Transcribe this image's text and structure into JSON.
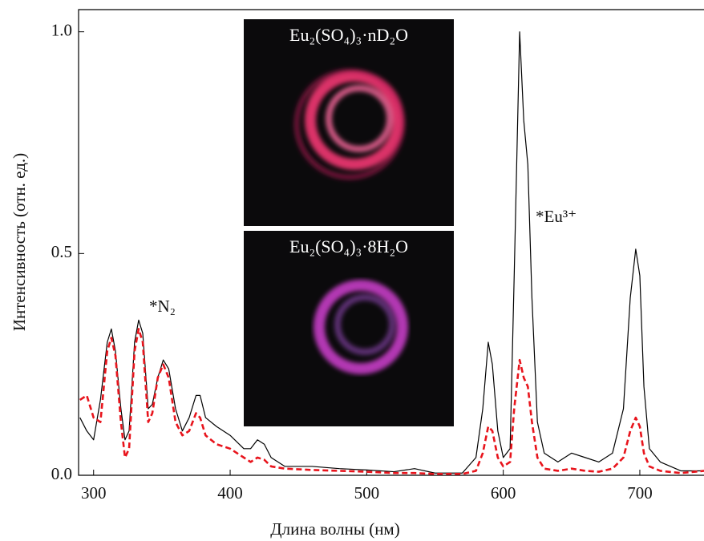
{
  "chart_data": {
    "type": "line",
    "x_label": "Длина волны (нм)",
    "y_label": "Интенсивность (отн. ед.)",
    "xlim": [
      289,
      747
    ],
    "ylim": [
      0,
      1.05
    ],
    "xticks": [
      300,
      400,
      500,
      600,
      700
    ],
    "yticks": [
      {
        "value": 0,
        "label": "0.0"
      },
      0.5,
      {
        "value": 1,
        "label": "1.0"
      }
    ],
    "annotations": [
      "*N₂",
      "*Eu³⁺"
    ],
    "insets": [
      {
        "label": "Eu₂(SO₄)₃·nD₂O"
      },
      {
        "label": "Eu₂(SO₄)₃·8H₂O"
      }
    ],
    "x": [
      290,
      295,
      300,
      305,
      310,
      313,
      316,
      320,
      323,
      326,
      330,
      333,
      336,
      340,
      343,
      347,
      351,
      355,
      360,
      365,
      370,
      375,
      378,
      382,
      390,
      400,
      410,
      415,
      420,
      425,
      430,
      440,
      460,
      480,
      500,
      520,
      535,
      550,
      570,
      580,
      585,
      589,
      592,
      596,
      600,
      605,
      608,
      612,
      615,
      618,
      621,
      625,
      630,
      640,
      650,
      660,
      670,
      680,
      688,
      693,
      697,
      700,
      703,
      707,
      715,
      730,
      747
    ],
    "series": [
      {
        "color": "#000000",
        "dashed": false,
        "values": [
          0.13,
          0.1,
          0.08,
          0.17,
          0.3,
          0.33,
          0.28,
          0.15,
          0.08,
          0.1,
          0.3,
          0.35,
          0.32,
          0.15,
          0.16,
          0.22,
          0.26,
          0.24,
          0.15,
          0.1,
          0.13,
          0.18,
          0.18,
          0.13,
          0.11,
          0.09,
          0.06,
          0.06,
          0.08,
          0.07,
          0.04,
          0.02,
          0.02,
          0.015,
          0.012,
          0.008,
          0.015,
          0.005,
          0.005,
          0.04,
          0.15,
          0.3,
          0.25,
          0.1,
          0.04,
          0.06,
          0.45,
          1.0,
          0.8,
          0.7,
          0.4,
          0.12,
          0.05,
          0.03,
          0.05,
          0.04,
          0.03,
          0.05,
          0.15,
          0.4,
          0.51,
          0.45,
          0.2,
          0.06,
          0.03,
          0.01,
          0.01
        ]
      },
      {
        "color": "#e8141c",
        "dashed": true,
        "values": [
          0.17,
          0.18,
          0.13,
          0.12,
          0.28,
          0.31,
          0.27,
          0.12,
          0.04,
          0.06,
          0.28,
          0.33,
          0.3,
          0.12,
          0.14,
          0.22,
          0.25,
          0.22,
          0.12,
          0.09,
          0.1,
          0.14,
          0.13,
          0.09,
          0.07,
          0.06,
          0.04,
          0.03,
          0.04,
          0.035,
          0.02,
          0.015,
          0.012,
          0.01,
          0.008,
          0.005,
          0.005,
          0.003,
          0.003,
          0.01,
          0.05,
          0.11,
          0.1,
          0.04,
          0.02,
          0.03,
          0.15,
          0.26,
          0.22,
          0.2,
          0.12,
          0.04,
          0.015,
          0.01,
          0.015,
          0.01,
          0.008,
          0.015,
          0.04,
          0.1,
          0.13,
          0.11,
          0.05,
          0.02,
          0.01,
          0.005,
          0.01
        ]
      }
    ]
  }
}
